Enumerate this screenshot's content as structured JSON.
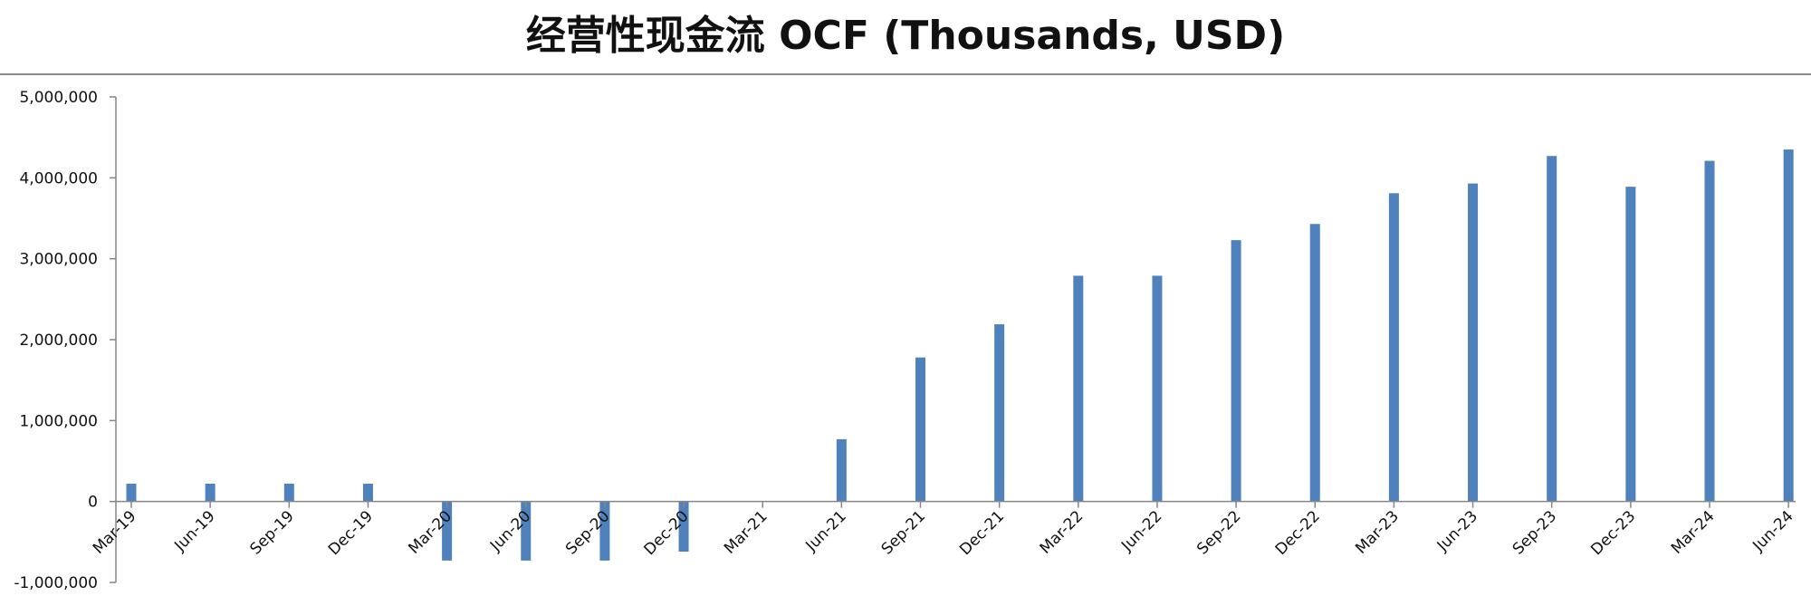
{
  "chart_data": {
    "type": "bar",
    "title": "经营性现金流 OCF (Thousands, USD)",
    "xlabel": "",
    "ylabel": "",
    "categories": [
      "Mar-19",
      "Jun-19",
      "Sep-19",
      "Dec-19",
      "Mar-20",
      "Jun-20",
      "Sep-20",
      "Dec-20",
      "Mar-21",
      "Jun-21",
      "Sep-21",
      "Dec-21",
      "Mar-22",
      "Jun-22",
      "Sep-22",
      "Dec-22",
      "Mar-23",
      "Jun-23",
      "Sep-23",
      "Dec-23",
      "Mar-24",
      "Jun-24"
    ],
    "series": [
      {
        "color": "#4f81bd",
        "values": [
          220000,
          220000,
          220000,
          220000,
          -730000,
          -730000,
          -730000,
          -620000,
          0,
          770000,
          1780000,
          2190000,
          2790000,
          2790000,
          3230000,
          3430000,
          3810000,
          3930000,
          4270000,
          3890000,
          4210000,
          4350000
        ]
      }
    ],
    "ylim": [
      -1000000,
      5000000
    ],
    "yticks": [
      -1000000,
      0,
      1000000,
      2000000,
      3000000,
      4000000,
      5000000
    ],
    "ytick_labels": [
      "-1,000,000",
      "0",
      "1,000,000",
      "2,000,000",
      "3,000,000",
      "4,000,000",
      "5,000,000"
    ],
    "grid": false,
    "legend": "none"
  }
}
